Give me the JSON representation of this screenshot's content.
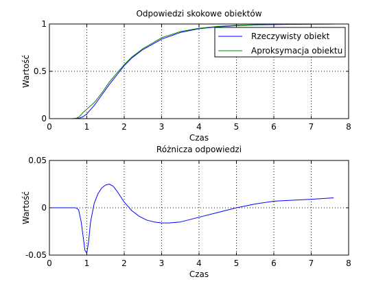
{
  "chart_data": [
    {
      "type": "line",
      "title": "Odpowiedzi skokowe obiektów",
      "xlabel": "Czas",
      "ylabel": "Wartość",
      "xlim": [
        0,
        8
      ],
      "ylim": [
        0,
        1
      ],
      "xticks": [
        "0",
        "1",
        "2",
        "3",
        "4",
        "5",
        "6",
        "7",
        "8"
      ],
      "yticks": [
        "0",
        "0.5",
        "1"
      ],
      "ytick_values": [
        0,
        0.5,
        1
      ],
      "grid": true,
      "legend": "top-right",
      "series": [
        {
          "name": "Rzeczywisty obiekt",
          "color": "#0000ff",
          "x": [
            0,
            0.6,
            0.8,
            0.9,
            1.0,
            1.2,
            1.4,
            1.6,
            1.8,
            2.0,
            2.2,
            2.5,
            3.0,
            3.5,
            4.0,
            4.5,
            5.0,
            5.5,
            6.0,
            6.5,
            7.0,
            7.6
          ],
          "y": [
            0,
            0,
            0.005,
            0.02,
            0.05,
            0.14,
            0.25,
            0.36,
            0.46,
            0.56,
            0.64,
            0.73,
            0.84,
            0.91,
            0.95,
            0.97,
            0.983,
            0.99,
            0.994,
            0.996,
            0.998,
            0.999
          ]
        },
        {
          "name": "Aproksymacja obiektu",
          "color": "#008000",
          "x": [
            0,
            0.7,
            0.8,
            0.9,
            1.0,
            1.2,
            1.4,
            1.6,
            1.8,
            2.0,
            2.2,
            2.5,
            3.0,
            3.5,
            4.0,
            4.5,
            5.0,
            5.5,
            6.0,
            6.5,
            7.0,
            7.6
          ],
          "y": [
            0,
            0,
            0.02,
            0.065,
            0.1,
            0.17,
            0.27,
            0.385,
            0.48,
            0.57,
            0.65,
            0.74,
            0.855,
            0.92,
            0.955,
            0.975,
            0.986,
            0.992,
            0.996,
            0.998,
            0.999,
            1.0
          ]
        }
      ]
    },
    {
      "type": "line",
      "title": "Różnicza odpowiedzi",
      "xlabel": "Czas",
      "ylabel": "Wartość",
      "xlim": [
        0,
        8
      ],
      "ylim": [
        -0.05,
        0.05
      ],
      "xticks": [
        "0",
        "1",
        "2",
        "3",
        "4",
        "5",
        "6",
        "7",
        "8"
      ],
      "yticks": [
        "-0.05",
        "0",
        "0.05"
      ],
      "ytick_values": [
        -0.05,
        0,
        0.05
      ],
      "grid": true,
      "series": [
        {
          "color": "#0000ff",
          "x": [
            0,
            0.7,
            0.78,
            0.85,
            0.9,
            0.95,
            1.0,
            1.05,
            1.1,
            1.2,
            1.3,
            1.4,
            1.5,
            1.6,
            1.7,
            1.8,
            2.0,
            2.2,
            2.4,
            2.6,
            2.8,
            3.0,
            3.2,
            3.5,
            4.0,
            4.5,
            5.0,
            5.5,
            6.0,
            6.5,
            7.0,
            7.6
          ],
          "y": [
            0,
            0,
            -0.002,
            -0.015,
            -0.03,
            -0.045,
            -0.048,
            -0.035,
            -0.015,
            0.005,
            0.015,
            0.021,
            0.024,
            0.025,
            0.023,
            0.018,
            0.006,
            -0.003,
            -0.009,
            -0.013,
            -0.015,
            -0.016,
            -0.016,
            -0.015,
            -0.01,
            -0.005,
            0.0,
            0.004,
            0.007,
            0.008,
            0.009,
            0.0105
          ]
        }
      ]
    }
  ]
}
